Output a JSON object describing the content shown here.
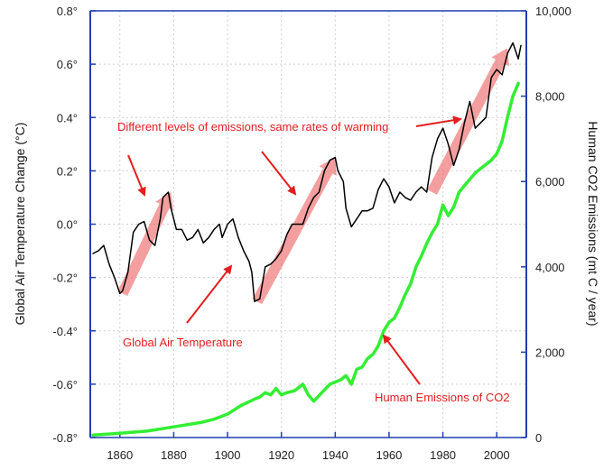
{
  "chart_data": {
    "type": "line",
    "x_range": [
      1849,
      2011
    ],
    "x_ticks": [
      1860,
      1880,
      1900,
      1920,
      1940,
      1960,
      1980,
      2000
    ],
    "left_axis": {
      "label": "Global Air Temperature Change  (°C)",
      "range": [
        -0.8,
        0.8
      ],
      "tick_labels": [
        "0.8°",
        "0.6°",
        "0.4°",
        "0.2°",
        "0.0°",
        "-0.2°",
        "-0.4°",
        "-0.6°",
        "-0.8°"
      ],
      "tick_values": [
        0.8,
        0.6,
        0.4,
        0.2,
        0.0,
        -0.2,
        -0.4,
        -0.6,
        -0.8
      ]
    },
    "right_axis": {
      "label": "Human CO2 Emissions  (mt C / year)",
      "range": [
        0,
        10000
      ],
      "tick_labels": [
        "10,000",
        "8,000",
        "6,000",
        "4,000",
        "2,000",
        "0"
      ],
      "tick_values": [
        10000,
        8000,
        6000,
        4000,
        2000,
        0
      ]
    },
    "grid": true,
    "series": [
      {
        "key": "temperature",
        "axis": "left",
        "color": "#000000",
        "x": [
          1850,
          1852,
          1854,
          1856,
          1858,
          1860,
          1861,
          1863,
          1865,
          1867,
          1869,
          1871,
          1873,
          1875,
          1876,
          1878,
          1879,
          1881,
          1883,
          1885,
          1887,
          1889,
          1891,
          1893,
          1895,
          1897,
          1898,
          1900,
          1902,
          1904,
          1906,
          1908,
          1909,
          1910,
          1912,
          1914,
          1916,
          1918,
          1920,
          1922,
          1924,
          1926,
          1928,
          1930,
          1932,
          1934,
          1936,
          1938,
          1940,
          1941,
          1943,
          1944,
          1946,
          1948,
          1950,
          1952,
          1954,
          1956,
          1958,
          1960,
          1962,
          1964,
          1966,
          1968,
          1970,
          1972,
          1974,
          1976,
          1978,
          1980,
          1982,
          1984,
          1986,
          1988,
          1990,
          1992,
          1994,
          1996,
          1998,
          2000,
          2002,
          2004,
          2006,
          2008,
          2009
        ],
        "values": [
          -0.11,
          -0.1,
          -0.08,
          -0.15,
          -0.2,
          -0.26,
          -0.25,
          -0.18,
          -0.03,
          0.0,
          0.01,
          -0.06,
          -0.08,
          0.02,
          0.1,
          0.12,
          0.06,
          -0.02,
          -0.02,
          -0.06,
          -0.05,
          -0.02,
          -0.07,
          -0.05,
          -0.02,
          0.0,
          -0.05,
          0.0,
          0.02,
          -0.05,
          -0.1,
          -0.14,
          -0.18,
          -0.29,
          -0.28,
          -0.16,
          -0.15,
          -0.13,
          -0.1,
          -0.04,
          0.0,
          0.0,
          0.0,
          0.06,
          0.1,
          0.12,
          0.2,
          0.24,
          0.25,
          0.2,
          0.16,
          0.06,
          -0.01,
          0.02,
          0.05,
          0.05,
          0.06,
          0.13,
          0.17,
          0.14,
          0.08,
          0.12,
          0.1,
          0.09,
          0.12,
          0.14,
          0.12,
          0.25,
          0.32,
          0.36,
          0.3,
          0.22,
          0.28,
          0.38,
          0.46,
          0.36,
          0.38,
          0.4,
          0.55,
          0.58,
          0.56,
          0.64,
          0.68,
          0.62,
          0.67
        ]
      },
      {
        "key": "emissions",
        "axis": "right",
        "color": "#33ee33",
        "x": [
          1850,
          1860,
          1870,
          1880,
          1890,
          1895,
          1900,
          1905,
          1910,
          1912,
          1914,
          1916,
          1918,
          1920,
          1922,
          1925,
          1928,
          1930,
          1932,
          1935,
          1938,
          1940,
          1942,
          1944,
          1946,
          1948,
          1950,
          1952,
          1954,
          1956,
          1958,
          1960,
          1962,
          1964,
          1966,
          1968,
          1970,
          1972,
          1974,
          1976,
          1978,
          1980,
          1982,
          1984,
          1986,
          1988,
          1990,
          1992,
          1994,
          1996,
          1998,
          2000,
          2002,
          2004,
          2006,
          2008
        ],
        "values": [
          60,
          100,
          150,
          250,
          350,
          430,
          550,
          750,
          900,
          950,
          1050,
          1000,
          1150,
          1000,
          1050,
          1100,
          1250,
          1000,
          850,
          1050,
          1250,
          1300,
          1350,
          1450,
          1250,
          1600,
          1650,
          1850,
          1950,
          2150,
          2500,
          2700,
          2800,
          3050,
          3350,
          3600,
          4000,
          4250,
          4550,
          4800,
          5000,
          5450,
          5200,
          5400,
          5750,
          5900,
          6050,
          6200,
          6300,
          6400,
          6500,
          6650,
          6950,
          7500,
          8000,
          8300
        ]
      }
    ],
    "annotations": [
      "Different levels of emissions, same rates of warming",
      "Global Air Temperature",
      "Human Emissions of CO2"
    ],
    "warming_trend_arrows": [
      {
        "x": [
          1861,
          1879
        ],
        "values": [
          -0.26,
          0.12
        ]
      },
      {
        "x": [
          1911,
          1940
        ],
        "values": [
          -0.29,
          0.25
        ]
      },
      {
        "x": [
          1976,
          2004
        ],
        "values": [
          0.12,
          0.66
        ]
      }
    ]
  }
}
